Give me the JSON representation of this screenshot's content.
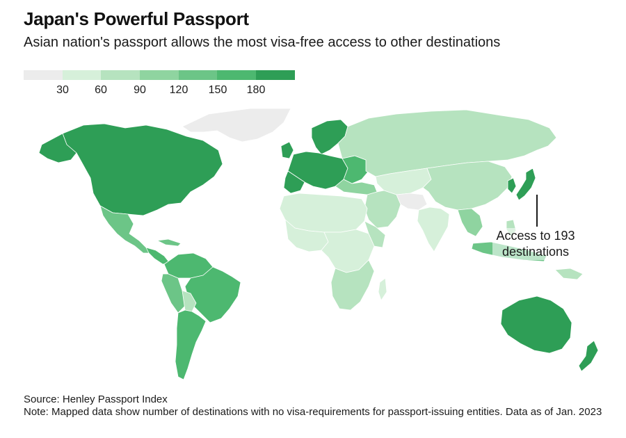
{
  "header": {
    "title": "Japan's Powerful Passport",
    "subtitle": "Asian nation's passport allows the most visa-free access to other destinations"
  },
  "legend": {
    "ticks": [
      "30",
      "60",
      "90",
      "120",
      "150",
      "180"
    ],
    "colors": [
      "#ececec",
      "#d6f0da",
      "#b6e3bf",
      "#8fd4a0",
      "#6cc587",
      "#4db870",
      "#2e9e56"
    ]
  },
  "colors": {
    "no_data": "#ececec",
    "low": "#d6f0da",
    "low_mid": "#b6e3bf",
    "mid": "#8fd4a0",
    "mid_high": "#6cc587",
    "high": "#4db870",
    "top": "#2e9e56",
    "border": "#ffffff"
  },
  "annotation": {
    "text_line1": "Access to 193",
    "text_line2": "destinations"
  },
  "footer": {
    "source": "Source: Henley Passport Index",
    "note": "Note: Mapped data show number of destinations with no visa-requirements for passport-issuing entities. Data as of Jan. 2023"
  }
}
